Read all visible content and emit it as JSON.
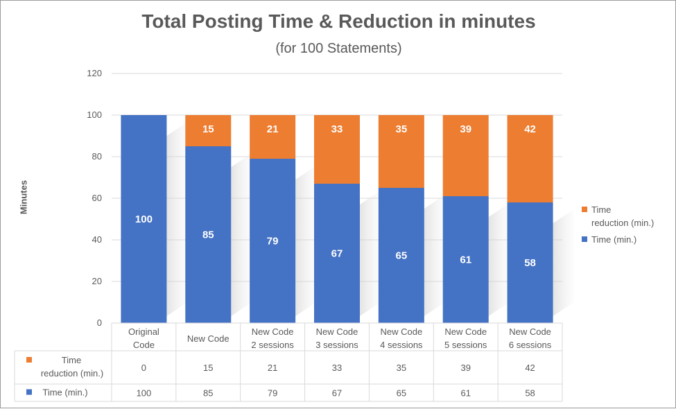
{
  "chart_data": {
    "type": "stacked-bar",
    "title": "Total Posting Time & Reduction in minutes",
    "subtitle": "(for 100 Statements)",
    "ylabel": "Minutes",
    "xlabel": "",
    "ylim": [
      0,
      120
    ],
    "yticks": [
      "0",
      "20",
      "40",
      "60",
      "80",
      "100",
      "120"
    ],
    "categories": [
      [
        "Original",
        "Code"
      ],
      [
        "New Code"
      ],
      [
        "New Code",
        "2 sessions"
      ],
      [
        "New Code",
        "3 sessions"
      ],
      [
        "New Code",
        "4 sessions"
      ],
      [
        "New Code",
        "5 sessions"
      ],
      [
        "New Code",
        "6 sessions"
      ]
    ],
    "series": [
      {
        "name": "Time (min.)",
        "color": "#4472c4",
        "values": [
          100,
          85,
          79,
          67,
          65,
          61,
          58
        ]
      },
      {
        "name": "Time reduction (min.)",
        "color": "#ed7d31",
        "values": [
          0,
          15,
          21,
          33,
          35,
          39,
          42
        ]
      }
    ],
    "legend": [
      {
        "lines": [
          "Time",
          "reduction (min.)"
        ],
        "color": "#ed7d31"
      },
      {
        "lines": [
          "Time (min.)"
        ],
        "color": "#4472c4"
      }
    ],
    "table_rows": [
      {
        "lines": [
          "Time",
          "reduction (min.)"
        ],
        "color": "#ed7d31",
        "values": [
          "0",
          "15",
          "21",
          "33",
          "35",
          "39",
          "42"
        ]
      },
      {
        "lines": [
          "Time (min.)"
        ],
        "color": "#4472c4",
        "values": [
          "100",
          "85",
          "79",
          "67",
          "65",
          "61",
          "58"
        ]
      }
    ],
    "grid": true,
    "legend_position": "right"
  }
}
